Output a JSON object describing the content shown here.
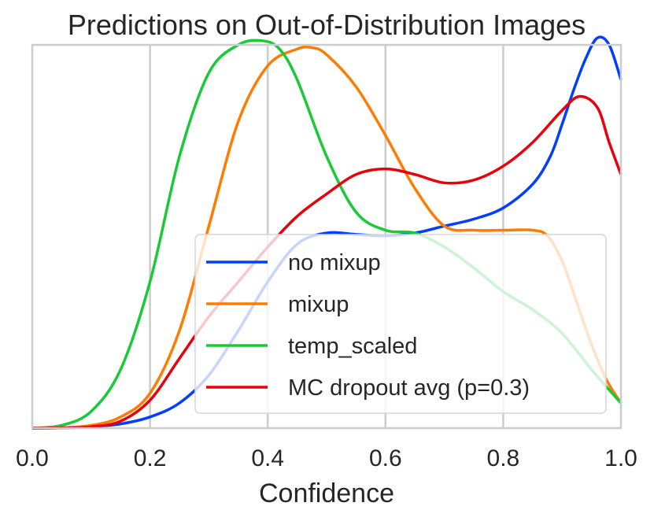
{
  "chart_data": {
    "type": "line",
    "title": "Predictions on Out-of-Distribution Images",
    "xlabel": "Confidence",
    "ylabel": "",
    "xlim": [
      0.0,
      1.0
    ],
    "ylim": [
      0.0,
      2.75
    ],
    "xticks": [
      "0.0",
      "0.2",
      "0.4",
      "0.6",
      "0.8",
      "1.0"
    ],
    "grid": "vertical",
    "legend_position": "lower-right",
    "series": [
      {
        "name": "no mixup",
        "color": "#023eff",
        "x": [
          0.0,
          0.05,
          0.1,
          0.15,
          0.2,
          0.25,
          0.3,
          0.35,
          0.4,
          0.45,
          0.5,
          0.55,
          0.6,
          0.65,
          0.7,
          0.75,
          0.8,
          0.85,
          0.88,
          0.9,
          0.92,
          0.94,
          0.96,
          0.98,
          1.0
        ],
        "y": [
          0.0,
          0.002,
          0.01,
          0.03,
          0.08,
          0.18,
          0.38,
          0.7,
          1.05,
          1.32,
          1.4,
          1.39,
          1.38,
          1.4,
          1.45,
          1.5,
          1.58,
          1.75,
          1.95,
          2.18,
          2.43,
          2.65,
          2.8,
          2.75,
          2.5
        ]
      },
      {
        "name": "mixup",
        "color": "#ff7c00",
        "x": [
          0.0,
          0.05,
          0.1,
          0.15,
          0.2,
          0.25,
          0.3,
          0.35,
          0.4,
          0.45,
          0.475,
          0.5,
          0.55,
          0.6,
          0.65,
          0.7,
          0.75,
          0.8,
          0.85,
          0.875,
          0.9,
          0.925,
          0.95,
          0.975,
          1.0
        ],
        "y": [
          0.0,
          0.003,
          0.02,
          0.08,
          0.25,
          0.7,
          1.45,
          2.2,
          2.6,
          2.72,
          2.73,
          2.68,
          2.45,
          2.1,
          1.72,
          1.45,
          1.42,
          1.42,
          1.42,
          1.38,
          1.2,
          0.9,
          0.6,
          0.35,
          0.18
        ]
      },
      {
        "name": "temp_scaled",
        "color": "#1ac938",
        "x": [
          0.0,
          0.05,
          0.1,
          0.15,
          0.2,
          0.25,
          0.3,
          0.35,
          0.39,
          0.42,
          0.45,
          0.5,
          0.55,
          0.6,
          0.65,
          0.7,
          0.75,
          0.8,
          0.85,
          0.9,
          0.95,
          1.0
        ],
        "y": [
          0.0,
          0.02,
          0.12,
          0.42,
          1.05,
          1.95,
          2.55,
          2.75,
          2.78,
          2.72,
          2.5,
          1.95,
          1.55,
          1.42,
          1.4,
          1.3,
          1.15,
          0.98,
          0.85,
          0.68,
          0.42,
          0.18
        ]
      },
      {
        "name": "MC dropout avg (p=0.3)",
        "color": "#e8000b",
        "x": [
          0.0,
          0.05,
          0.1,
          0.15,
          0.2,
          0.25,
          0.3,
          0.35,
          0.4,
          0.45,
          0.5,
          0.55,
          0.6,
          0.65,
          0.7,
          0.75,
          0.8,
          0.85,
          0.9,
          0.93,
          0.96,
          0.98,
          1.0
        ],
        "y": [
          0.0,
          0.002,
          0.01,
          0.05,
          0.2,
          0.5,
          0.8,
          1.05,
          1.3,
          1.52,
          1.68,
          1.82,
          1.86,
          1.82,
          1.76,
          1.78,
          1.88,
          2.05,
          2.28,
          2.38,
          2.3,
          2.05,
          1.82
        ]
      }
    ]
  }
}
